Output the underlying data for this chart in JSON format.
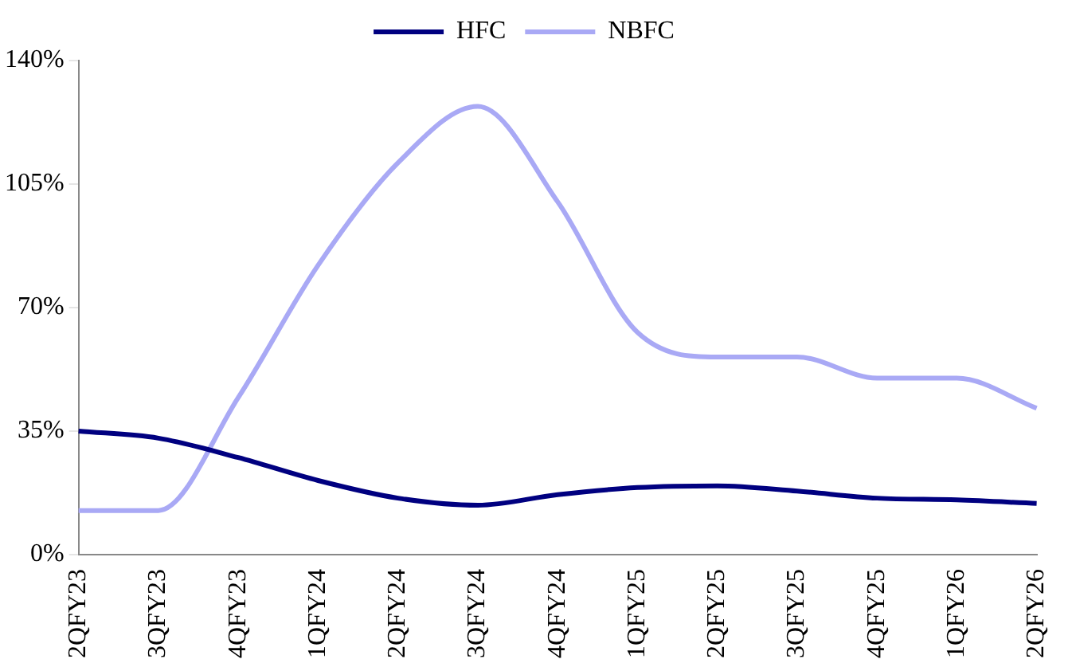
{
  "chart_data": {
    "type": "line",
    "categories": [
      "2QFY23",
      "3QFY23",
      "4QFY23",
      "1QFY24",
      "2QFY24",
      "3QFY24",
      "4QFY24",
      "1QFY25",
      "2QFY25",
      "3QFY25",
      "4QFY25",
      "1QFY26",
      "2QFY26"
    ],
    "series": [
      {
        "name": "HFC",
        "color": "#000080",
        "values": [
          35,
          33,
          27.5,
          21,
          16,
          14,
          17,
          19,
          19.5,
          18,
          16,
          15.5,
          14.5
        ]
      },
      {
        "name": "NBFC",
        "color": "#a9a9f5",
        "values": [
          12.5,
          12.5,
          44.5,
          82,
          111,
          127,
          100,
          63,
          56,
          56,
          50,
          50,
          41.5
        ]
      }
    ],
    "ylim": [
      0,
      140
    ],
    "yticks": [
      {
        "value": 0,
        "label": "0%"
      },
      {
        "value": 35,
        "label": "35%"
      },
      {
        "value": 70,
        "label": "70%"
      },
      {
        "value": 105,
        "label": "105%"
      },
      {
        "value": 140,
        "label": "140%"
      }
    ],
    "grid": false,
    "legend": "top",
    "marker": "none",
    "line_style": "solid"
  }
}
